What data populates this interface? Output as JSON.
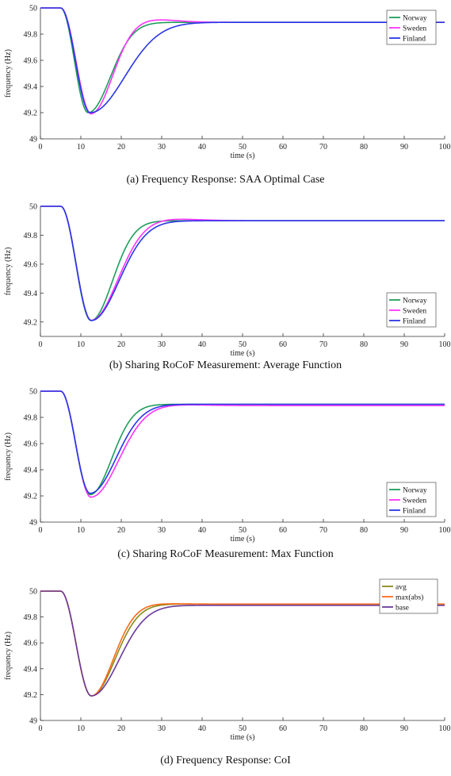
{
  "chart_data": [
    {
      "type": "line",
      "caption": "(a) Frequency Response: SAA Optimal Case",
      "xlabel": "time (s)",
      "ylabel": "frequency (Hz)",
      "xlim": [
        0,
        100
      ],
      "ylim": [
        49,
        50
      ],
      "xticks": [
        "0",
        "10",
        "20",
        "30",
        "40",
        "50",
        "60",
        "70",
        "80",
        "90",
        "100"
      ],
      "yticks": [
        "49",
        "49.2",
        "49.4",
        "49.6",
        "49.8",
        "50"
      ],
      "legend_position": "top-right",
      "series": [
        {
          "name": "Norway",
          "color": "#1e9e5a",
          "nadir_t": 11.8,
          "nadir_f": 49.2,
          "final": 49.89,
          "tau": 5.5,
          "overshoot": 0.0
        },
        {
          "name": "Sweden",
          "color": "#ff33ff",
          "nadir_t": 12.6,
          "nadir_f": 49.19,
          "final": 49.89,
          "tau": 5.2,
          "overshoot": 0.025
        },
        {
          "name": "Finland",
          "color": "#2a36e6",
          "nadir_t": 12.3,
          "nadir_f": 49.2,
          "final": 49.89,
          "tau": 8.5,
          "overshoot": 0.0
        }
      ]
    },
    {
      "type": "line",
      "caption": "(b) Sharing RoCoF Measurement: Average Function",
      "xlabel": "time (s)",
      "ylabel": "frequency (Hz)",
      "xlim": [
        0,
        100
      ],
      "ylim": [
        49.1,
        50
      ],
      "xticks": [
        "0",
        "10",
        "20",
        "30",
        "40",
        "50",
        "60",
        "70",
        "80",
        "90",
        "100"
      ],
      "yticks": [
        "49.2",
        "49.4",
        "49.6",
        "49.8",
        "50"
      ],
      "legend_position": "bottom-right",
      "series": [
        {
          "name": "Norway",
          "color": "#1e9e5a",
          "nadir_t": 12.5,
          "nadir_f": 49.21,
          "final": 49.9,
          "tau": 5.3,
          "overshoot": 0.0
        },
        {
          "name": "Sweden",
          "color": "#ff33ff",
          "nadir_t": 12.6,
          "nadir_f": 49.21,
          "final": 49.9,
          "tau": 6.5,
          "overshoot": 0.015
        },
        {
          "name": "Finland",
          "color": "#2a36e6",
          "nadir_t": 12.6,
          "nadir_f": 49.21,
          "final": 49.9,
          "tau": 6.8,
          "overshoot": 0.0
        }
      ]
    },
    {
      "type": "line",
      "caption": "(c) Sharing RoCoF Measurement: Max Function",
      "xlabel": "time (s)",
      "ylabel": "frequency (Hz)",
      "xlim": [
        0,
        100
      ],
      "ylim": [
        49,
        50
      ],
      "xticks": [
        "0",
        "10",
        "20",
        "30",
        "40",
        "50",
        "60",
        "70",
        "80",
        "90",
        "100"
      ],
      "yticks": [
        "49",
        "49.2",
        "49.4",
        "49.6",
        "49.8",
        "50"
      ],
      "legend_position": "bottom-right",
      "series": [
        {
          "name": "Norway",
          "color": "#1e9e5a",
          "nadir_t": 12.3,
          "nadir_f": 49.21,
          "final": 49.9,
          "tau": 5.3,
          "overshoot": 0.0
        },
        {
          "name": "Sweden",
          "color": "#ff33ff",
          "nadir_t": 12.5,
          "nadir_f": 49.19,
          "final": 49.89,
          "tau": 6.8,
          "overshoot": 0.008
        },
        {
          "name": "Finland",
          "color": "#2a36e6",
          "nadir_t": 12.3,
          "nadir_f": 49.22,
          "final": 49.9,
          "tau": 6.4,
          "overshoot": 0.0
        }
      ]
    },
    {
      "type": "line",
      "caption": "(d) Frequency Response: CoI",
      "xlabel": "time (s)",
      "ylabel": "frequency (Hz)",
      "xlim": [
        0,
        100
      ],
      "ylim": [
        49,
        50
      ],
      "xticks": [
        "0",
        "10",
        "20",
        "30",
        "40",
        "50",
        "60",
        "70",
        "80",
        "90",
        "100"
      ],
      "yticks": [
        "49",
        "49.2",
        "49.4",
        "49.6",
        "49.8",
        "50"
      ],
      "legend_position": "top-right",
      "series": [
        {
          "name": "avg",
          "color": "#8a8a1a",
          "nadir_t": 12.6,
          "nadir_f": 49.19,
          "final": 49.9,
          "tau": 5.8,
          "overshoot": 0.0
        },
        {
          "name": "max(abs)",
          "color": "#ff6a1a",
          "nadir_t": 12.6,
          "nadir_f": 49.19,
          "final": 49.9,
          "tau": 5.4,
          "overshoot": 0.004
        },
        {
          "name": "base",
          "color": "#6a3a9a",
          "nadir_t": 12.6,
          "nadir_f": 49.19,
          "final": 49.89,
          "tau": 6.8,
          "overshoot": 0.0
        }
      ]
    }
  ]
}
